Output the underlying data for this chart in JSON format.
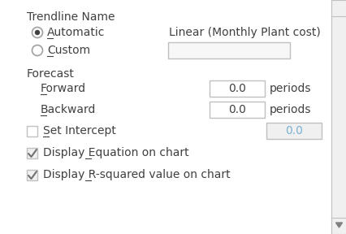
{
  "bg_color": "#ffffff",
  "border_color": "#c0c0c0",
  "text_color": "#404040",
  "blue_text_color": "#7bafd4",
  "title": "Trendline Name",
  "radio_automatic": "Automatic",
  "radio_custom": "Custom",
  "auto_label": "Linear (Monthly Plant cost)",
  "forecast_label": "Forecast",
  "forward_label": "Forward",
  "backward_label": "Backward",
  "periods_label": "periods",
  "set_intercept_label": "Set Intercept",
  "display_eq_label": "Display Equation on chart",
  "display_r2_label": "Display R-squared value on chart",
  "value_00": "0.0",
  "scrollbar_color": "#f0f0f0",
  "scrollbar_border": "#c0c0c0",
  "checkbox_check_color": "#707070",
  "checkbox_fill": "#f0f0f0",
  "radio_border": "#a0a0a0",
  "fs_main": 10,
  "underline_color": "#404040"
}
